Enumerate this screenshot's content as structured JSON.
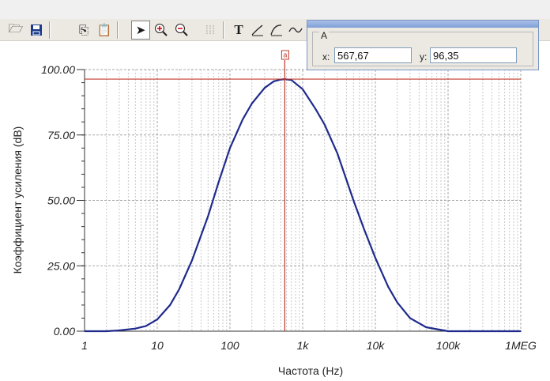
{
  "toolbar": {
    "buttons": [
      "open-file-icon",
      "save-icon",
      "copy-icon",
      "paste-icon",
      "pointer-icon",
      "zoom-in-icon",
      "zoom-out-icon",
      "grid-icon",
      "text-tool-icon",
      "line-tool-icon",
      "curve-tool-icon",
      "wave-tool-icon"
    ]
  },
  "cursor_panel": {
    "group_title": "A",
    "x_label": "x:",
    "x_value": "567,67",
    "y_label": "y:",
    "y_value": "96,35"
  },
  "cursor_marker_label": "a",
  "chart_data": {
    "type": "line",
    "xlabel": "Частота (Hz)",
    "ylabel": "Коэффициент усиления (dB)",
    "xscale": "log",
    "xlim": [
      1,
      1000000
    ],
    "ylim": [
      0,
      100
    ],
    "xticks": [
      {
        "v": 1,
        "label": "1"
      },
      {
        "v": 10,
        "label": "10"
      },
      {
        "v": 100,
        "label": "100"
      },
      {
        "v": 1000,
        "label": "1k"
      },
      {
        "v": 10000,
        "label": "10k"
      },
      {
        "v": 100000,
        "label": "100k"
      },
      {
        "v": 1000000,
        "label": "1MEG"
      }
    ],
    "yticks": [
      {
        "v": 0,
        "label": "0.00"
      },
      {
        "v": 25,
        "label": "25.00"
      },
      {
        "v": 50,
        "label": "50.00"
      },
      {
        "v": 75,
        "label": "75.00"
      },
      {
        "v": 100,
        "label": "100.00"
      }
    ],
    "grid": true,
    "series": [
      {
        "color": "#1f2a8c",
        "x": [
          1,
          2,
          3,
          5,
          7,
          10,
          15,
          20,
          30,
          50,
          70,
          100,
          150,
          200,
          300,
          400,
          500,
          567.67,
          700,
          1000,
          1500,
          2000,
          3000,
          5000,
          7000,
          10000,
          15000,
          20000,
          30000,
          50000,
          100000,
          200000,
          1000000
        ],
        "y": [
          0,
          0,
          0.3,
          1,
          2,
          4.5,
          10,
          16,
          27,
          44,
          57,
          70,
          81,
          87,
          93,
          95.5,
          96.2,
          96.35,
          96,
          92.5,
          85,
          79,
          68,
          50,
          39,
          28,
          17,
          11,
          5,
          1.5,
          0,
          0,
          0
        ]
      }
    ],
    "cursor": {
      "x": 567.67,
      "y": 96.35,
      "color": "#c0392b"
    }
  }
}
